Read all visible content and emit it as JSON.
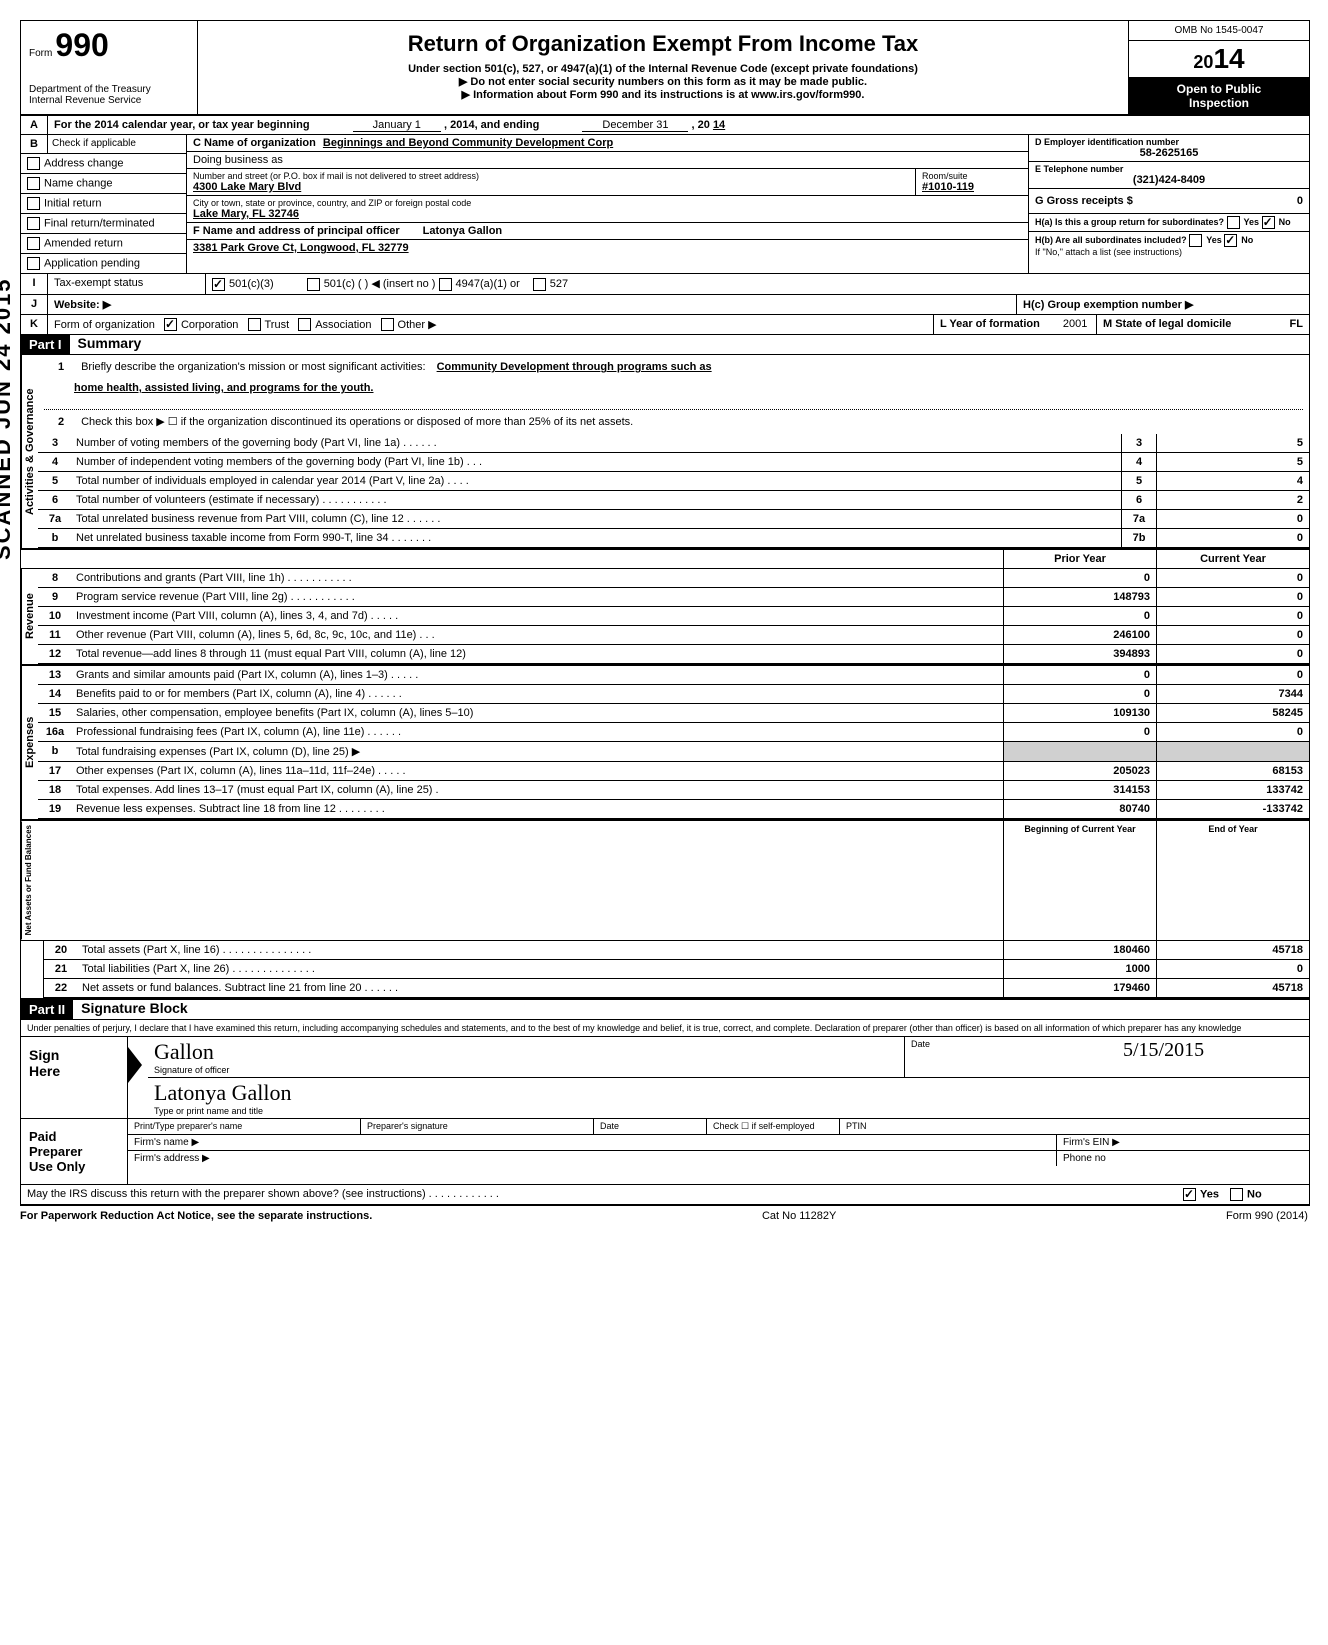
{
  "header": {
    "form_label": "Form",
    "form_number": "990",
    "dept": "Department of the Treasury",
    "irs": "Internal Revenue Service",
    "title": "Return of Organization Exempt From Income Tax",
    "subtitle": "Under section 501(c), 527, or 4947(a)(1) of the Internal Revenue Code (except private foundations)",
    "warning": "▶ Do not enter social security numbers on this form as it may be made public.",
    "info": "▶ Information about Form 990 and its instructions is at www.irs.gov/form990.",
    "omb": "OMB No 1545-0047",
    "year": "2014",
    "open_public": "Open to Public",
    "inspection": "Inspection"
  },
  "lineA": {
    "label": "A",
    "text1": "For the 2014 calendar year, or tax year beginning",
    "begin": "January 1",
    "text2": ", 2014, and ending",
    "end": "December 31",
    "text3": ", 20",
    "yr": "14"
  },
  "lineB": {
    "label": "B",
    "check_if": "Check if applicable",
    "opts": [
      "Address change",
      "Name change",
      "Initial return",
      "Final return/terminated",
      "Amended return",
      "Application pending"
    ]
  },
  "lineC": {
    "label_c": "C Name of organization",
    "org_name": "Beginnings and Beyond Community Development Corp",
    "dba_label": "Doing business as",
    "dba": "",
    "street_label": "Number and street (or P.O. box if mail is not delivered to street address)",
    "street": "4300 Lake Mary Blvd",
    "room_label": "Room/suite",
    "room": "#1010-119",
    "city_label": "City or town, state or province, country, and ZIP or foreign postal code",
    "city": "Lake Mary, FL  32746",
    "f_label": "F Name and address of principal officer",
    "officer": "Latonya Gallon",
    "officer_addr": "3381 Park Grove Ct, Longwood, FL 32779"
  },
  "lineD": {
    "label": "D Employer identification number",
    "value": "58-2625165"
  },
  "lineE": {
    "label": "E Telephone number",
    "value": "(321)424-8409"
  },
  "lineG": {
    "label": "G Gross receipts $",
    "value": "0"
  },
  "lineH": {
    "ha": "H(a) Is this a group return for subordinates?",
    "hb": "H(b) Are all subordinates included?",
    "hb_note": "If \"No,\" attach a list (see instructions)",
    "hc": "H(c) Group exemption number ▶",
    "yes": "Yes",
    "no": "No"
  },
  "lineI": {
    "label": "I",
    "text": "Tax-exempt status",
    "opts": [
      "501(c)(3)",
      "501(c) (",
      "4947(a)(1) or",
      "527"
    ],
    "insert": ") ◀ (insert no )"
  },
  "lineJ": {
    "label": "J",
    "text": "Website: ▶"
  },
  "lineK": {
    "label": "K",
    "text": "Form of organization",
    "opts": [
      "Corporation",
      "Trust",
      "Association",
      "Other ▶"
    ],
    "l_label": "L Year of formation",
    "l_val": "2001",
    "m_label": "M State of legal domicile",
    "m_val": "FL"
  },
  "part1": {
    "header": "Part I",
    "title": "Summary"
  },
  "governance": {
    "label": "Activities & Governance",
    "lines": [
      {
        "num": "1",
        "desc": "Briefly describe the organization's mission or most significant activities:",
        "val": "Community Development through programs such as",
        "line2": "home health, assisted living, and programs for the youth."
      },
      {
        "num": "2",
        "desc": "Check this box ▶ ☐ if the organization discontinued its operations or disposed of more than 25% of its net assets."
      },
      {
        "num": "3",
        "desc": "Number of voting members of the governing body (Part VI, line 1a) . . . . . .",
        "box": "3",
        "val": "5"
      },
      {
        "num": "4",
        "desc": "Number of independent voting members of the governing body (Part VI, line 1b) . . .",
        "box": "4",
        "val": "5"
      },
      {
        "num": "5",
        "desc": "Total number of individuals employed in calendar year 2014 (Part V, line 2a) . . . .",
        "box": "5",
        "val": "4"
      },
      {
        "num": "6",
        "desc": "Total number of volunteers (estimate if necessary) . . . . . . . . . . .",
        "box": "6",
        "val": "2"
      },
      {
        "num": "7a",
        "desc": "Total unrelated business revenue from Part VIII, column (C), line 12 . . . . . .",
        "box": "7a",
        "val": "0"
      },
      {
        "num": "b",
        "desc": "Net unrelated business taxable income from Form 990-T, line 34 . . . . . . .",
        "box": "7b",
        "val": "0"
      }
    ]
  },
  "prior_current": {
    "prior": "Prior Year",
    "current": "Current Year"
  },
  "revenue": {
    "label": "Revenue",
    "lines": [
      {
        "num": "8",
        "desc": "Contributions and grants (Part VIII, line 1h) . . . . . . . . . . .",
        "prior": "0",
        "curr": "0"
      },
      {
        "num": "9",
        "desc": "Program service revenue (Part VIII, line 2g) . . . . . . . . . . .",
        "prior": "148793",
        "curr": "0"
      },
      {
        "num": "10",
        "desc": "Investment income (Part VIII, column (A), lines 3, 4, and 7d) . . . . .",
        "prior": "0",
        "curr": "0"
      },
      {
        "num": "11",
        "desc": "Other revenue (Part VIII, column (A), lines 5, 6d, 8c, 9c, 10c, and 11e) . . .",
        "prior": "246100",
        "curr": "0"
      },
      {
        "num": "12",
        "desc": "Total revenue—add lines 8 through 11 (must equal Part VIII, column (A), line 12)",
        "prior": "394893",
        "curr": "0"
      }
    ]
  },
  "expenses": {
    "label": "Expenses",
    "lines": [
      {
        "num": "13",
        "desc": "Grants and similar amounts paid (Part IX, column (A), lines 1–3) . . . . .",
        "prior": "0",
        "curr": "0"
      },
      {
        "num": "14",
        "desc": "Benefits paid to or for members (Part IX, column (A), line 4) . . . . . .",
        "prior": "0",
        "curr": "7344"
      },
      {
        "num": "15",
        "desc": "Salaries, other compensation, employee benefits (Part IX, column (A), lines 5–10)",
        "prior": "109130",
        "curr": "58245"
      },
      {
        "num": "16a",
        "desc": "Professional fundraising fees (Part IX, column (A), line 11e) . . . . . .",
        "prior": "0",
        "curr": "0"
      },
      {
        "num": "b",
        "desc": "Total fundraising expenses (Part IX, column (D), line 25) ▶",
        "prior": "",
        "curr": "",
        "shaded": true
      },
      {
        "num": "17",
        "desc": "Other expenses (Part IX, column (A), lines 11a–11d, 11f–24e) . . . . .",
        "prior": "205023",
        "curr": "68153"
      },
      {
        "num": "18",
        "desc": "Total expenses. Add lines 13–17 (must equal Part IX, column (A), line 25) .",
        "prior": "314153",
        "curr": "133742"
      },
      {
        "num": "19",
        "desc": "Revenue less expenses. Subtract line 18 from line 12 . . . . . . . .",
        "prior": "80740",
        "curr": "-133742"
      }
    ]
  },
  "netassets": {
    "label": "Net Assets or Fund Balances",
    "header_prior": "Beginning of Current Year",
    "header_curr": "End of Year",
    "lines": [
      {
        "num": "20",
        "desc": "Total assets (Part X, line 16) . . . . . . . . . . . . . . .",
        "prior": "180460",
        "curr": "45718"
      },
      {
        "num": "21",
        "desc": "Total liabilities (Part X, line 26) . . . . . . . . . . . . . .",
        "prior": "1000",
        "curr": "0"
      },
      {
        "num": "22",
        "desc": "Net assets or fund balances. Subtract line 21 from line 20 . . . . . .",
        "prior": "179460",
        "curr": "45718"
      }
    ]
  },
  "part2": {
    "header": "Part II",
    "title": "Signature Block",
    "declaration": "Under penalties of perjury, I declare that I have examined this return, including accompanying schedules and statements, and to the best of my knowledge and belief, it is true, correct, and complete. Declaration of preparer (other than officer) is based on all information of which preparer has any knowledge"
  },
  "sign": {
    "sign": "Sign",
    "here": "Here",
    "sig_label": "Signature of officer",
    "date_label": "Date",
    "signature": "Gallon",
    "name": "Latonya Gallon",
    "name_label": "Type or print name and title",
    "date": "5/15/2015"
  },
  "paid": {
    "paid": "Paid",
    "preparer": "Preparer",
    "useonly": "Use Only",
    "name_label": "Print/Type preparer's name",
    "sig_label": "Preparer's signature",
    "date_label": "Date",
    "check_label": "Check ☐ if self-employed",
    "ptin_label": "PTIN",
    "firm_name": "Firm's name ▶",
    "firm_ein": "Firm's EIN ▶",
    "firm_addr": "Firm's address ▶",
    "phone": "Phone no"
  },
  "bottom": {
    "discuss": "May the IRS discuss this return with the preparer shown above? (see instructions) . . . . . . . . . . . .",
    "yes": "Yes",
    "no": "No",
    "paperwork": "For Paperwork Reduction Act Notice, see the separate instructions.",
    "cat": "Cat No 11282Y",
    "form": "Form 990 (2014)"
  },
  "stamp": "SCANNED  JUN 24 2015"
}
